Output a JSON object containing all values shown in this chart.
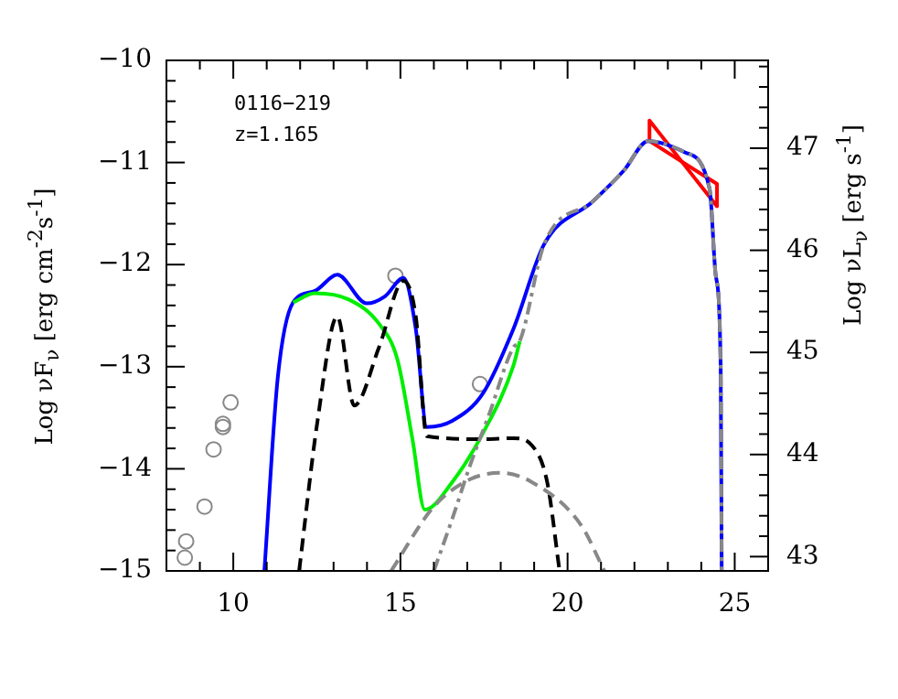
{
  "chart_data": {
    "type": "line",
    "ylabel": "Log νF$_{ν}$ [erg cm$^{-2}$s$^{-1}$]",
    "y2label": "Log νL$_{ν}$ [erg s$^{-1}$]",
    "annotations": [
      "0116−219",
      "z=1.165"
    ],
    "xlim": [
      8,
      26
    ],
    "xticks": [
      {
        "value": 9,
        "label": null
      },
      10,
      {
        "value": 11,
        "label": null
      },
      {
        "value": 12,
        "label": null
      },
      {
        "value": 13,
        "label": null
      },
      {
        "value": 14,
        "label": null
      },
      15,
      {
        "value": 16,
        "label": null
      },
      {
        "value": 17,
        "label": null
      },
      {
        "value": 18,
        "label": null
      },
      {
        "value": 19,
        "label": null
      },
      20,
      {
        "value": 21,
        "label": null
      },
      {
        "value": 22,
        "label": null
      },
      {
        "value": 23,
        "label": null
      },
      {
        "value": 24,
        "label": null
      },
      25
    ],
    "ylim": [
      -15,
      -10
    ],
    "yticks": [
      -15,
      {
        "value": -14.8,
        "label": null
      },
      {
        "value": -14.6,
        "label": null
      },
      {
        "value": -14.4,
        "label": null
      },
      {
        "value": -14.2,
        "label": null
      },
      -14,
      {
        "value": -13.8,
        "label": null
      },
      {
        "value": -13.6,
        "label": null
      },
      {
        "value": -13.4,
        "label": null
      },
      {
        "value": -13.2,
        "label": null
      },
      -13,
      {
        "value": -12.8,
        "label": null
      },
      {
        "value": -12.6,
        "label": null
      },
      {
        "value": -12.4,
        "label": null
      },
      {
        "value": -12.2,
        "label": null
      },
      -12,
      {
        "value": -11.8,
        "label": null
      },
      {
        "value": -11.6,
        "label": null
      },
      {
        "value": -11.4,
        "label": null
      },
      {
        "value": -11.2,
        "label": null
      },
      -11,
      {
        "value": -10.8,
        "label": null
      },
      {
        "value": -10.6,
        "label": null
      },
      {
        "value": -10.4,
        "label": null
      },
      {
        "value": -10.2,
        "label": null
      },
      -10
    ],
    "y2lim": [
      42.86,
      47.86
    ],
    "y2ticks": [
      {
        "value": 43.0,
        "label": "43"
      },
      {
        "value": 43.2,
        "label": null
      },
      {
        "value": 43.4,
        "label": null
      },
      {
        "value": 43.6,
        "label": null
      },
      {
        "value": 43.8,
        "label": null
      },
      44,
      {
        "value": 44.2,
        "label": null
      },
      {
        "value": 44.4,
        "label": null
      },
      {
        "value": 44.6,
        "label": null
      },
      {
        "value": 44.8,
        "label": null
      },
      45,
      {
        "value": 45.2,
        "label": null
      },
      {
        "value": 45.4,
        "label": null
      },
      {
        "value": 45.6,
        "label": null
      },
      {
        "value": 45.8,
        "label": null
      },
      46,
      {
        "value": 46.2,
        "label": null
      },
      {
        "value": 46.4,
        "label": null
      },
      {
        "value": 46.6,
        "label": null
      },
      {
        "value": 46.8,
        "label": null
      },
      47,
      {
        "value": 47.2,
        "label": null
      },
      {
        "value": 47.4,
        "label": null
      },
      {
        "value": 47.6,
        "label": null
      },
      {
        "value": 47.8,
        "label": null
      }
    ],
    "grid": false,
    "legend": false,
    "series": [
      {
        "color": "#888888",
        "line_style": "dashed",
        "marker": "none",
        "x": [
          14.72,
          16.0,
          17.1,
          18.02,
          18.93,
          20.4,
          21.1
        ],
        "values": [
          -15,
          -14.37,
          -14.1,
          -14.04,
          -14.13,
          -14.55,
          -15
        ]
      },
      {
        "color": "#888888",
        "line_style": "dashdot",
        "marker": "none",
        "x": [
          16.0,
          16.55,
          17.1,
          17.65,
          18.38,
          18.57,
          19.3,
          20.76,
          21.68,
          22.41,
          23.51,
          24.25,
          24.43,
          24.58,
          24.61
        ],
        "values": [
          -15,
          -14.49,
          -13.95,
          -13.47,
          -12.81,
          -12.75,
          -11.8,
          -11.38,
          -11.08,
          -10.79,
          -10.9,
          -11.26,
          -12.1,
          -12.99,
          -15
        ]
      },
      {
        "color": "#000000",
        "line_style": "dashed",
        "marker": "none",
        "x": [
          11.97,
          12.52,
          13.11,
          13.62,
          14.36,
          15.09,
          15.46,
          15.79,
          17.47,
          18.38,
          18.93,
          19.39,
          19.76
        ],
        "values": [
          -15,
          -13.53,
          -12.51,
          -13.38,
          -12.81,
          -12.16,
          -12.51,
          -13.68,
          -13.71,
          -13.7,
          -13.77,
          -14.13,
          -15
        ]
      },
      {
        "color": "#00ee00",
        "line_style": "solid",
        "marker": "none",
        "x": [
          11.79,
          12.43,
          13.44,
          14.36,
          14.91,
          15.36,
          15.73,
          16.55,
          17.47,
          18.38,
          18.57
        ],
        "values": [
          -12.37,
          -12.28,
          -12.34,
          -12.58,
          -12.93,
          -13.71,
          -14.4,
          -14.13,
          -13.65,
          -12.99,
          -12.75
        ]
      },
      {
        "color": "#0000ff",
        "line_style": "solid",
        "marker": "none",
        "x": [
          10.93,
          11.33,
          11.79,
          12.43,
          13.11,
          13.99,
          14.54,
          15.09,
          15.46,
          15.79,
          16.55,
          17.47,
          18.38,
          19.3,
          20.76,
          21.68,
          22.41,
          23.51,
          24.25,
          24.43,
          24.58,
          24.61
        ],
        "values": [
          -15,
          -13.11,
          -12.37,
          -12.26,
          -12.1,
          -12.38,
          -12.31,
          -12.13,
          -12.63,
          -13.59,
          -13.53,
          -13.26,
          -12.63,
          -11.8,
          -11.38,
          -11.08,
          -10.79,
          -10.9,
          -11.26,
          -12.1,
          -12.99,
          -15
        ]
      },
      {
        "color": "#ff0000",
        "line_style": "solid",
        "marker": "none",
        "x": [
          22.45,
          22.45,
          24.47
        ],
        "values": [
          -10.79,
          -10.59,
          -11.43
        ]
      },
      {
        "color": "#ff0000",
        "line_style": "solid",
        "marker": "none",
        "x": [
          22.45,
          24.47,
          24.47
        ],
        "values": [
          -10.79,
          -11.21,
          -11.43
        ]
      },
      {
        "type": "scatter",
        "color": "#888888",
        "marker": "circle",
        "x": [
          8.55,
          8.59,
          9.14,
          9.41,
          9.69,
          9.69,
          9.92,
          14.85,
          17.38
        ],
        "values": [
          -14.87,
          -14.71,
          -14.37,
          -13.81,
          -13.59,
          -13.56,
          -13.35,
          -12.11,
          -13.17
        ]
      }
    ]
  }
}
